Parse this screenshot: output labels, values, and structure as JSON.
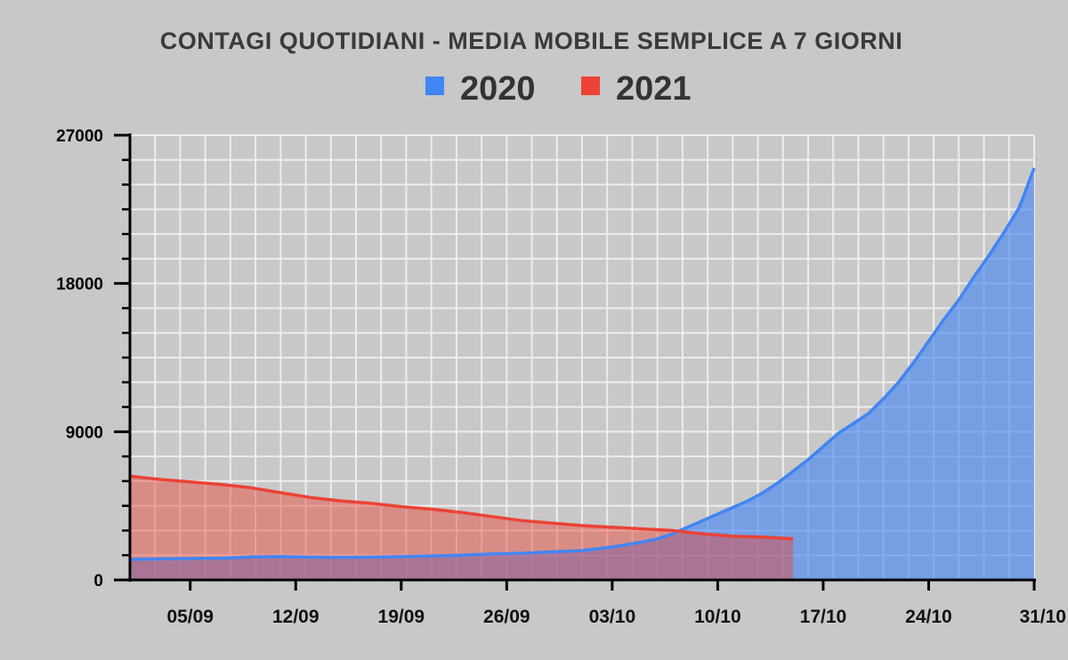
{
  "chart_data": {
    "type": "area",
    "title": "CONTAGI QUOTIDIANI - MEDIA MOBILE SEMPLICE A 7 GIORNI",
    "xlabel": "",
    "ylabel": "",
    "ylim": [
      0,
      27000
    ],
    "yticks": [
      0,
      9000,
      18000,
      27000
    ],
    "ytick_labels": [
      "0",
      "9000",
      "18000",
      "27000"
    ],
    "xlim": [
      0,
      60
    ],
    "xticks": [
      4,
      11,
      18,
      25,
      32,
      39,
      46,
      53,
      60
    ],
    "xtick_labels": [
      "05/09",
      "12/09",
      "19/09",
      "26/09",
      "03/10",
      "10/10",
      "17/10",
      "24/10",
      "31/10"
    ],
    "grid": true,
    "legend": "top-center",
    "series": [
      {
        "name": "2020",
        "color": "#4285f4",
        "x": [
          0,
          4,
          6,
          8,
          10,
          12,
          14,
          16,
          18,
          20,
          22,
          24,
          26,
          28,
          30,
          32,
          34,
          35,
          36,
          37,
          38,
          39,
          40,
          41,
          42,
          43,
          44,
          45,
          46,
          47,
          48,
          49,
          50,
          51,
          52,
          53,
          54,
          55,
          56,
          57,
          58,
          59,
          60
        ],
        "values": [
          1250,
          1300,
          1320,
          1400,
          1420,
          1380,
          1370,
          1380,
          1420,
          1450,
          1500,
          1580,
          1620,
          1700,
          1780,
          2000,
          2300,
          2500,
          2800,
          3200,
          3600,
          4000,
          4400,
          4800,
          5300,
          5900,
          6600,
          7300,
          8100,
          8900,
          9500,
          10100,
          11000,
          12000,
          13200,
          14500,
          15800,
          17000,
          18400,
          19700,
          21100,
          22600,
          25000
        ]
      },
      {
        "name": "2021",
        "color": "#ea4335",
        "x": [
          0,
          1,
          2,
          4,
          6,
          7,
          8,
          9,
          10,
          12,
          14,
          16,
          18,
          20,
          22,
          24,
          26,
          28,
          30,
          32,
          34,
          35,
          36,
          38,
          40,
          42,
          44
        ],
        "values": [
          6300,
          6200,
          6100,
          5950,
          5800,
          5700,
          5600,
          5450,
          5300,
          5000,
          4800,
          4650,
          4450,
          4300,
          4100,
          3850,
          3600,
          3450,
          3300,
          3200,
          3100,
          3050,
          3000,
          2800,
          2650,
          2600,
          2500
        ]
      }
    ]
  }
}
